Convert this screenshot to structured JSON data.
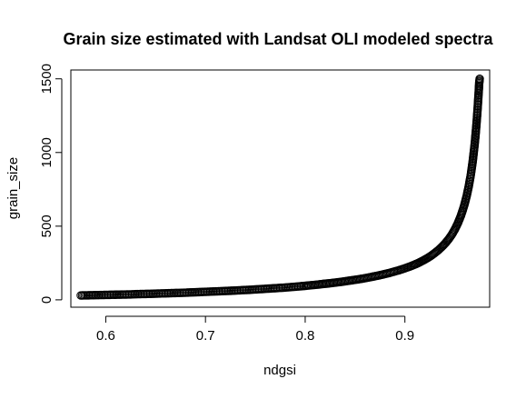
{
  "chart_data": {
    "type": "scatter",
    "title": "Grain size estimated with Landsat OLI modeled spectra",
    "xlabel": "ndgsi",
    "ylabel": "grain_size",
    "xlim": [
      0.565,
      0.985
    ],
    "ylim": [
      -50,
      1560
    ],
    "xticks": [
      0.6,
      0.7,
      0.8,
      0.9
    ],
    "yticks": [
      0,
      500,
      1000,
      1500
    ],
    "tick_labels": {
      "x": [
        "0.6",
        "0.7",
        "0.8",
        "0.9"
      ],
      "y": [
        "0",
        "500",
        "1000",
        "1500"
      ]
    },
    "marker": "open-circle",
    "points": [
      [
        0.575,
        30
      ],
      [
        0.583,
        31
      ],
      [
        0.59,
        32
      ],
      [
        0.597,
        33
      ],
      [
        0.604,
        34
      ],
      [
        0.611,
        35
      ],
      [
        0.618,
        36
      ],
      [
        0.625,
        37
      ],
      [
        0.632,
        39
      ],
      [
        0.639,
        40
      ],
      [
        0.646,
        41
      ],
      [
        0.653,
        43
      ],
      [
        0.66,
        44
      ],
      [
        0.667,
        46
      ],
      [
        0.674,
        47
      ],
      [
        0.681,
        49
      ],
      [
        0.688,
        51
      ],
      [
        0.695,
        53
      ],
      [
        0.702,
        55
      ],
      [
        0.709,
        57
      ],
      [
        0.716,
        59
      ],
      [
        0.723,
        61
      ],
      [
        0.73,
        63
      ],
      [
        0.737,
        66
      ],
      [
        0.744,
        68
      ],
      [
        0.751,
        71
      ],
      [
        0.758,
        74
      ],
      [
        0.765,
        77
      ],
      [
        0.772,
        80
      ],
      [
        0.779,
        83
      ],
      [
        0.786,
        87
      ],
      [
        0.793,
        91
      ],
      [
        0.8,
        95
      ],
      [
        0.806,
        99
      ],
      [
        0.812,
        103
      ],
      [
        0.818,
        108
      ],
      [
        0.824,
        112
      ],
      [
        0.83,
        117
      ],
      [
        0.836,
        122
      ],
      [
        0.842,
        128
      ],
      [
        0.848,
        134
      ],
      [
        0.854,
        140
      ],
      [
        0.86,
        147
      ],
      [
        0.866,
        155
      ],
      [
        0.872,
        163
      ],
      [
        0.878,
        172
      ],
      [
        0.884,
        182
      ],
      [
        0.89,
        193
      ],
      [
        0.895,
        203
      ],
      [
        0.9,
        214
      ],
      [
        0.905,
        226
      ],
      [
        0.91,
        240
      ],
      [
        0.914,
        252
      ],
      [
        0.918,
        266
      ],
      [
        0.922,
        281
      ],
      [
        0.926,
        298
      ],
      [
        0.93,
        318
      ],
      [
        0.934,
        340
      ],
      [
        0.938,
        366
      ],
      [
        0.941,
        388
      ],
      [
        0.944,
        413
      ],
      [
        0.947,
        442
      ],
      [
        0.95,
        477
      ],
      [
        0.953,
        518
      ],
      [
        0.956,
        568
      ],
      [
        0.958,
        608
      ],
      [
        0.96,
        653
      ],
      [
        0.962,
        706
      ],
      [
        0.964,
        769
      ],
      [
        0.966,
        845
      ],
      [
        0.968,
        939
      ],
      [
        0.97,
        1058
      ],
      [
        0.971,
        1130
      ],
      [
        0.972,
        1212
      ],
      [
        0.973,
        1305
      ],
      [
        0.974,
        1410
      ],
      [
        0.9745,
        1470
      ],
      [
        0.975,
        1500
      ]
    ]
  }
}
